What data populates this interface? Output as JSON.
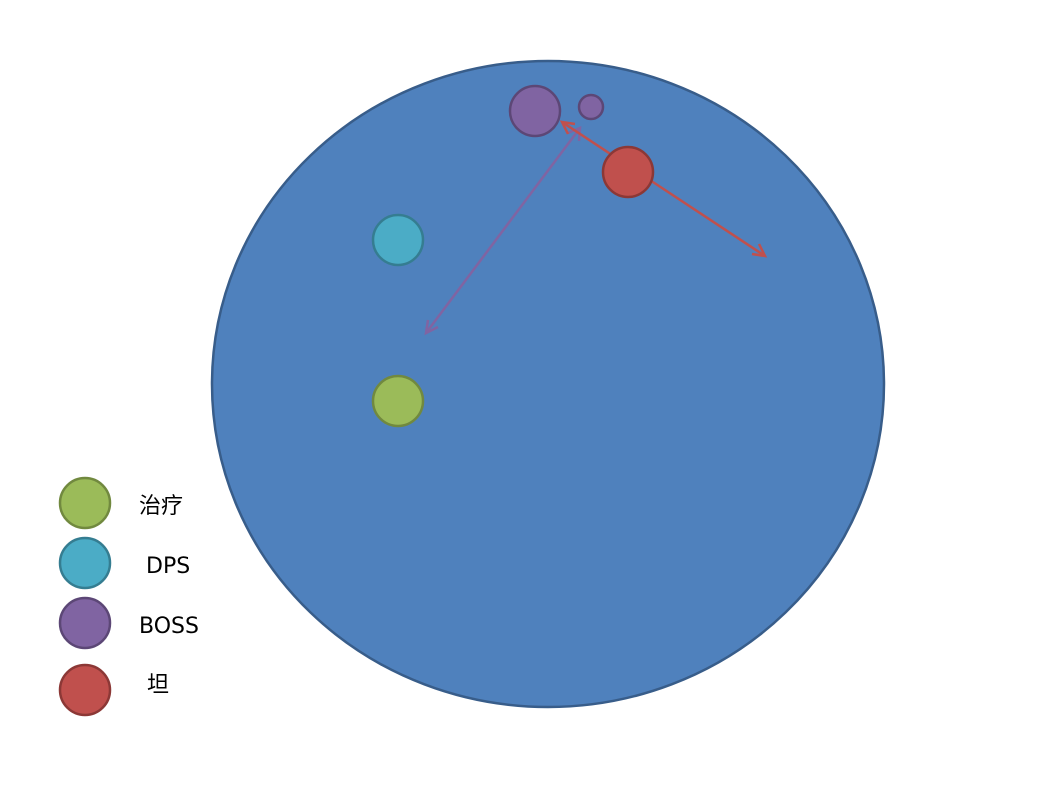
{
  "legend": [
    "治疗",
    "DPS",
    "BOSS",
    "坦"
  ]
}
